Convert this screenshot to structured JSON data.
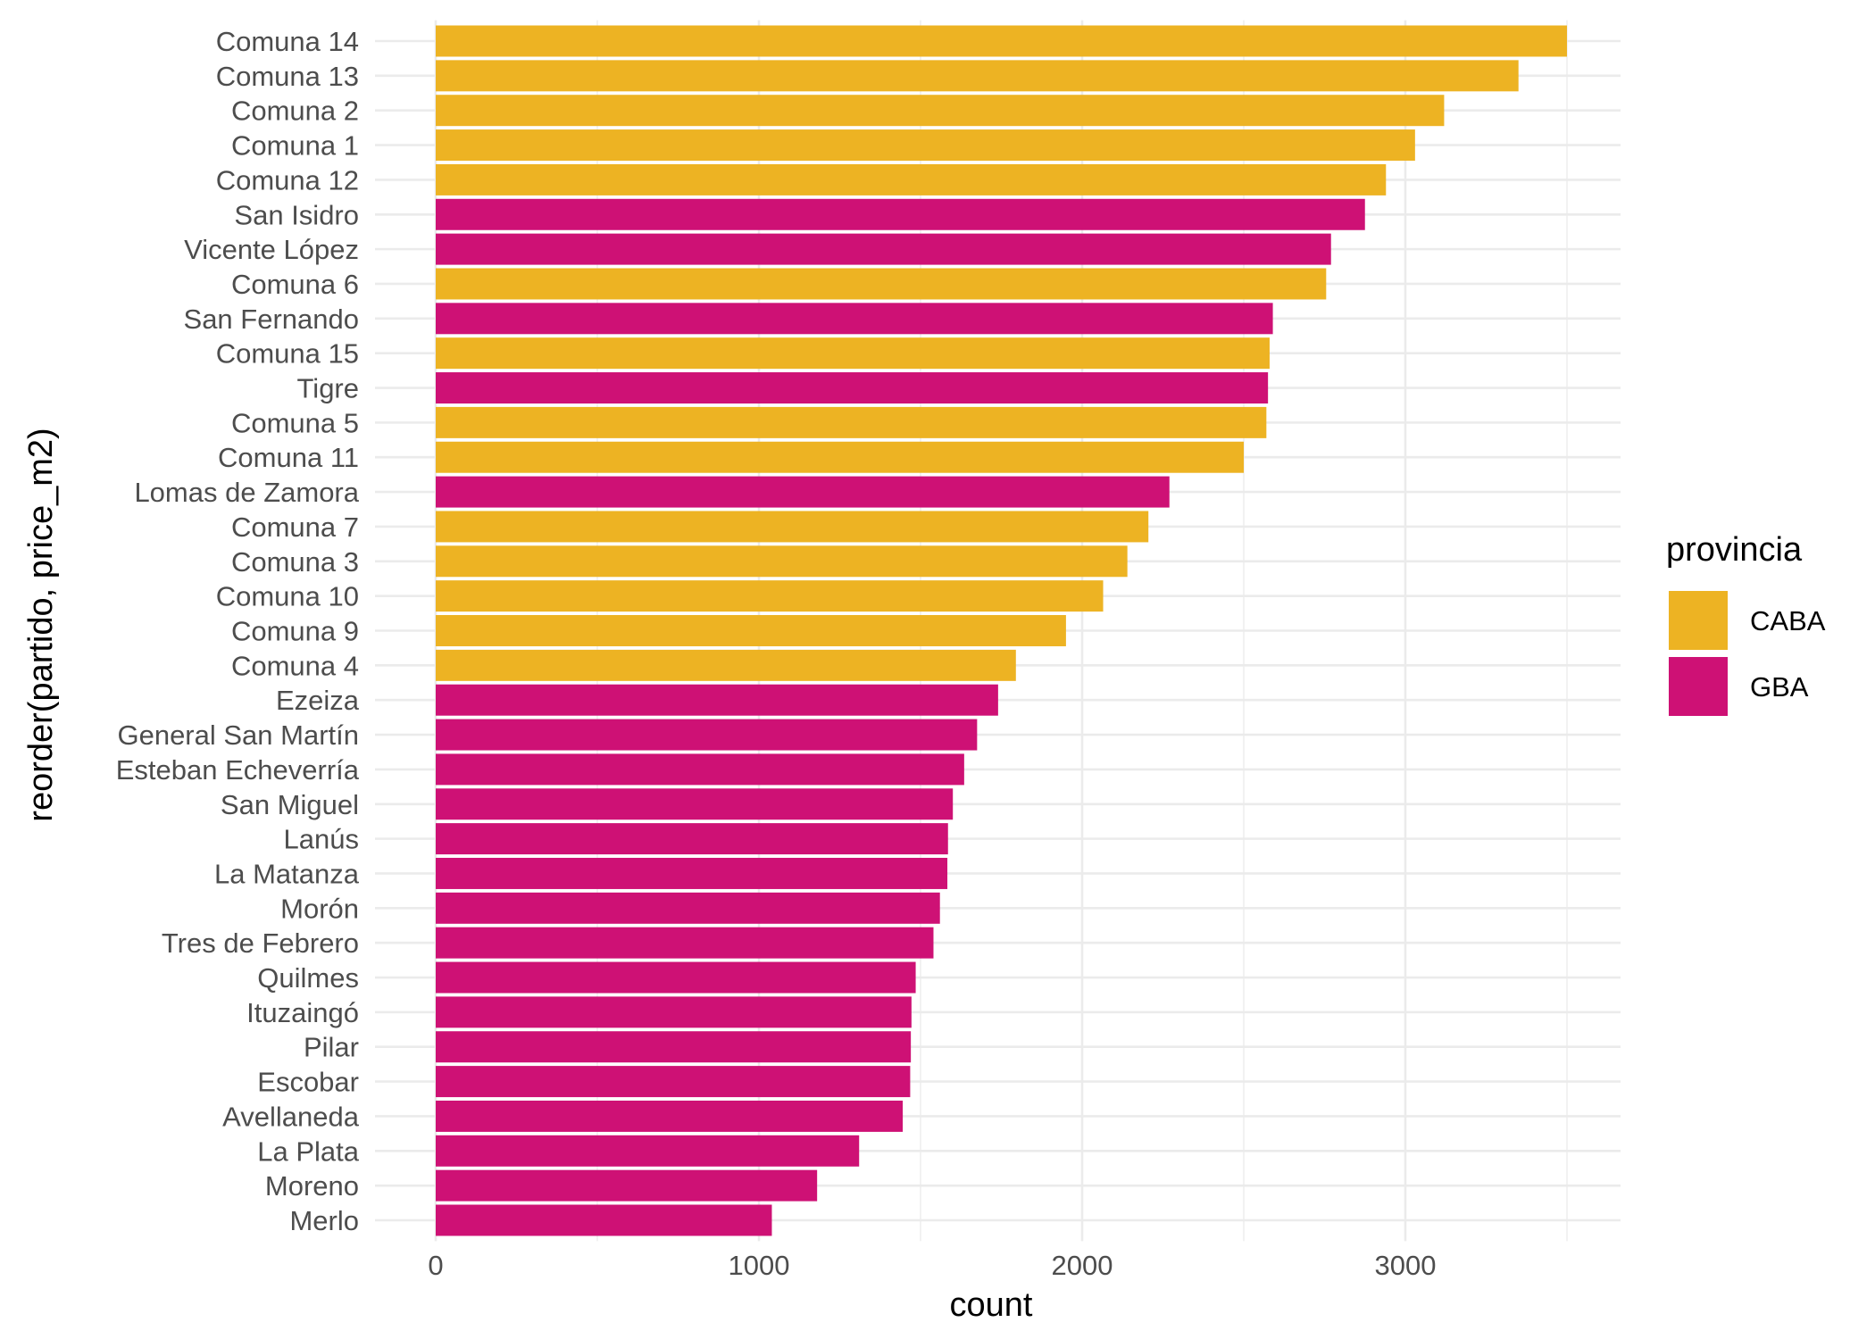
{
  "chart_data": {
    "type": "bar",
    "orientation": "horizontal",
    "title": "",
    "xlabel": "count",
    "ylabel": "reorder(partido, price_m2)",
    "xlim": [
      0,
      3650
    ],
    "x_ticks": [
      0,
      1000,
      2000,
      3000
    ],
    "x_tick_labels": [
      "0",
      "1000",
      "2000",
      "3000"
    ],
    "grid": true,
    "legend": {
      "title": "provincia",
      "position": "right",
      "entries": [
        {
          "label": "CABA",
          "color": "#EDB323"
        },
        {
          "label": "GBA",
          "color": "#CE1175"
        }
      ]
    },
    "bars": [
      {
        "category": "Comuna 14",
        "value": 3500,
        "provincia": "CABA"
      },
      {
        "category": "Comuna 13",
        "value": 3350,
        "provincia": "CABA"
      },
      {
        "category": "Comuna 2",
        "value": 3120,
        "provincia": "CABA"
      },
      {
        "category": "Comuna 1",
        "value": 3030,
        "provincia": "CABA"
      },
      {
        "category": "Comuna 12",
        "value": 2940,
        "provincia": "CABA"
      },
      {
        "category": "San Isidro",
        "value": 2875,
        "provincia": "GBA"
      },
      {
        "category": "Vicente López",
        "value": 2770,
        "provincia": "GBA"
      },
      {
        "category": "Comuna 6",
        "value": 2755,
        "provincia": "CABA"
      },
      {
        "category": "San Fernando",
        "value": 2590,
        "provincia": "GBA"
      },
      {
        "category": "Comuna 15",
        "value": 2580,
        "provincia": "CABA"
      },
      {
        "category": "Tigre",
        "value": 2575,
        "provincia": "GBA"
      },
      {
        "category": "Comuna 5",
        "value": 2570,
        "provincia": "CABA"
      },
      {
        "category": "Comuna 11",
        "value": 2500,
        "provincia": "CABA"
      },
      {
        "category": "Lomas de Zamora",
        "value": 2270,
        "provincia": "GBA"
      },
      {
        "category": "Comuna 7",
        "value": 2205,
        "provincia": "CABA"
      },
      {
        "category": "Comuna 3",
        "value": 2140,
        "provincia": "CABA"
      },
      {
        "category": "Comuna 10",
        "value": 2065,
        "provincia": "CABA"
      },
      {
        "category": "Comuna 9",
        "value": 1950,
        "provincia": "CABA"
      },
      {
        "category": "Comuna 4",
        "value": 1795,
        "provincia": "CABA"
      },
      {
        "category": "Ezeiza",
        "value": 1740,
        "provincia": "GBA"
      },
      {
        "category": "General San Martín",
        "value": 1675,
        "provincia": "GBA"
      },
      {
        "category": "Esteban Echeverría",
        "value": 1635,
        "provincia": "GBA"
      },
      {
        "category": "San Miguel",
        "value": 1600,
        "provincia": "GBA"
      },
      {
        "category": "Lanús",
        "value": 1585,
        "provincia": "GBA"
      },
      {
        "category": "La Matanza",
        "value": 1583,
        "provincia": "GBA"
      },
      {
        "category": "Morón",
        "value": 1560,
        "provincia": "GBA"
      },
      {
        "category": "Tres de Febrero",
        "value": 1540,
        "provincia": "GBA"
      },
      {
        "category": "Quilmes",
        "value": 1485,
        "provincia": "GBA"
      },
      {
        "category": "Ituzaingó",
        "value": 1472,
        "provincia": "GBA"
      },
      {
        "category": "Pilar",
        "value": 1470,
        "provincia": "GBA"
      },
      {
        "category": "Escobar",
        "value": 1468,
        "provincia": "GBA"
      },
      {
        "category": "Avellaneda",
        "value": 1445,
        "provincia": "GBA"
      },
      {
        "category": "La Plata",
        "value": 1310,
        "provincia": "GBA"
      },
      {
        "category": "Moreno",
        "value": 1180,
        "provincia": "GBA"
      },
      {
        "category": "Merlo",
        "value": 1040,
        "provincia": "GBA"
      }
    ]
  }
}
